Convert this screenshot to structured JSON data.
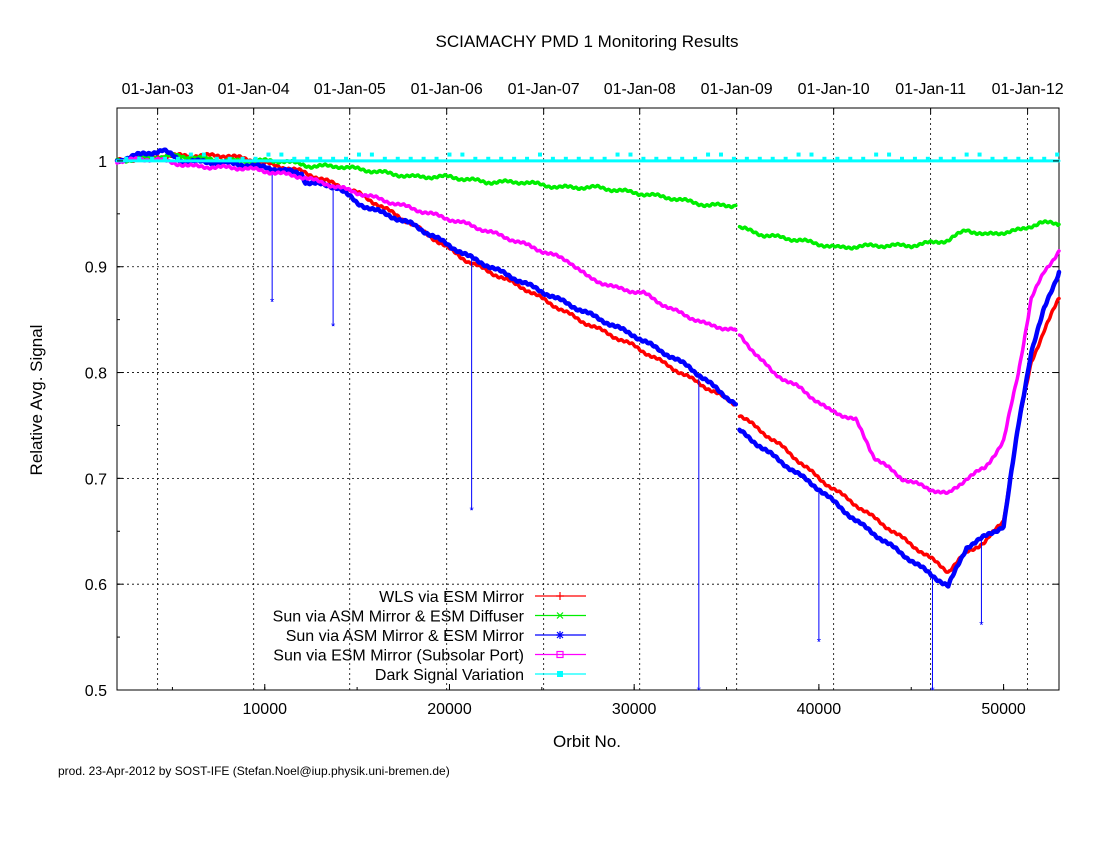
{
  "footer": "prod. 23-Apr-2012 by SOST-IFE (Stefan.Noel@iup.physik.uni-bremen.de)",
  "chart_data": {
    "type": "line",
    "title": "SCIAMACHY PMD 1 Monitoring Results",
    "xlabel": "Orbit No.",
    "ylabel": "Relative Avg. Signal",
    "xlim": [
      2000,
      53000
    ],
    "ylim": [
      0.5,
      1.05
    ],
    "grid": true,
    "legend_position": "bottom-left",
    "x_ticks": [
      10000,
      20000,
      30000,
      40000,
      50000
    ],
    "x_tick_labels": [
      "10000",
      "20000",
      "30000",
      "40000",
      "50000"
    ],
    "y_ticks": [
      0.5,
      0.6,
      0.7,
      0.8,
      0.9,
      1.0
    ],
    "y_tick_labels": [
      "0.5",
      "0.6",
      "0.7",
      "0.8",
      "0.9",
      "1"
    ],
    "top_axis": {
      "orbits": [
        4200,
        9400,
        14600,
        19850,
        25100,
        30300,
        35550,
        40800,
        46050,
        51300
      ],
      "labels": [
        "01-Jan-03",
        "01-Jan-04",
        "01-Jan-05",
        "01-Jan-06",
        "01-Jan-07",
        "01-Jan-08",
        "01-Jan-09",
        "01-Jan-10",
        "01-Jan-11",
        "01-Jan-12"
      ]
    },
    "series": [
      {
        "name": "WLS via ESM Mirror",
        "color": "#ff0000",
        "marker": "plus",
        "segments": [
          [
            [
              2000,
              1.0
            ],
            [
              5000,
              1.005
            ],
            [
              8000,
              1.005
            ],
            [
              9500,
              1.0
            ],
            [
              12000,
              0.99
            ],
            [
              15000,
              0.97
            ],
            [
              18000,
              0.94
            ],
            [
              21000,
              0.905
            ],
            [
              24000,
              0.88
            ],
            [
              27000,
              0.85
            ],
            [
              30000,
              0.825
            ],
            [
              33000,
              0.795
            ],
            [
              35500,
              0.77
            ]
          ],
          [
            [
              35700,
              0.76
            ],
            [
              38000,
              0.73
            ],
            [
              40000,
              0.7
            ],
            [
              42000,
              0.675
            ],
            [
              44000,
              0.65
            ],
            [
              46000,
              0.625
            ],
            [
              47000,
              0.612
            ],
            [
              48000,
              0.63
            ],
            [
              49000,
              0.64
            ],
            [
              50000,
              0.66
            ],
            [
              50800,
              0.75
            ],
            [
              51500,
              0.81
            ],
            [
              52200,
              0.84
            ],
            [
              53000,
              0.87
            ]
          ]
        ]
      },
      {
        "name": "Sun via ASM Mirror & ESM Diffuser",
        "color": "#00ee00",
        "marker": "cross",
        "segments": [
          [
            [
              2000,
              1.0
            ],
            [
              5000,
              1.005
            ],
            [
              8000,
              1.0
            ],
            [
              11000,
              1.0
            ],
            [
              12500,
              0.995
            ],
            [
              14000,
              0.995
            ],
            [
              16000,
              0.99
            ],
            [
              18000,
              0.985
            ],
            [
              20000,
              0.985
            ],
            [
              22000,
              0.98
            ],
            [
              24000,
              0.98
            ],
            [
              26000,
              0.975
            ],
            [
              28000,
              0.975
            ],
            [
              30000,
              0.97
            ],
            [
              32000,
              0.965
            ],
            [
              34000,
              0.958
            ],
            [
              35500,
              0.958
            ]
          ],
          [
            [
              35700,
              0.937
            ],
            [
              37000,
              0.93
            ],
            [
              39000,
              0.925
            ],
            [
              41000,
              0.918
            ],
            [
              43000,
              0.92
            ],
            [
              45000,
              0.92
            ],
            [
              47000,
              0.925
            ],
            [
              48000,
              0.935
            ],
            [
              49000,
              0.93
            ],
            [
              51000,
              0.935
            ],
            [
              52000,
              0.942
            ],
            [
              53000,
              0.94
            ]
          ]
        ]
      },
      {
        "name": "Sun via ASM Mirror & ESM Mirror",
        "color": "#0000ff",
        "marker": "star",
        "segments": [
          [
            [
              2000,
              1.0
            ],
            [
              3000,
              1.005
            ],
            [
              4500,
              1.01
            ],
            [
              5500,
              1.0
            ],
            [
              8000,
              0.998
            ],
            [
              10000,
              0.994
            ],
            [
              12000,
              0.988
            ],
            [
              12200,
              0.98
            ],
            [
              14000,
              0.975
            ],
            [
              15000,
              0.96
            ],
            [
              18000,
              0.94
            ],
            [
              21000,
              0.91
            ],
            [
              24000,
              0.885
            ],
            [
              27000,
              0.86
            ],
            [
              30000,
              0.835
            ],
            [
              33000,
              0.805
            ],
            [
              35500,
              0.77
            ]
          ],
          [
            [
              35700,
              0.745
            ],
            [
              38000,
              0.715
            ],
            [
              40000,
              0.69
            ],
            [
              42000,
              0.66
            ],
            [
              44000,
              0.635
            ],
            [
              46000,
              0.61
            ],
            [
              47000,
              0.598
            ],
            [
              48000,
              0.635
            ],
            [
              49000,
              0.645
            ],
            [
              50000,
              0.655
            ],
            [
              50800,
              0.75
            ],
            [
              51500,
              0.82
            ],
            [
              52200,
              0.86
            ],
            [
              53000,
              0.895
            ]
          ]
        ],
        "spikes": [
          [
            10400,
            0.867
          ],
          [
            13700,
            0.844
          ],
          [
            21200,
            0.67
          ],
          [
            33500,
            0.5
          ],
          [
            40000,
            0.546
          ],
          [
            46150,
            0.5
          ],
          [
            48800,
            0.562
          ]
        ]
      },
      {
        "name": "Sun via ESM Mirror (Subsolar Port)",
        "color": "#ff00ff",
        "marker": "square",
        "segments": [
          [
            [
              2000,
              1.0
            ],
            [
              4000,
              1.002
            ],
            [
              6000,
              0.995
            ],
            [
              9000,
              0.993
            ],
            [
              12000,
              0.985
            ],
            [
              15000,
              0.97
            ],
            [
              18000,
              0.955
            ],
            [
              21000,
              0.94
            ],
            [
              23500,
              0.925
            ],
            [
              25000,
              0.915
            ],
            [
              26500,
              0.905
            ],
            [
              27500,
              0.89
            ],
            [
              29000,
              0.88
            ],
            [
              30500,
              0.875
            ],
            [
              32000,
              0.86
            ],
            [
              34000,
              0.845
            ],
            [
              35500,
              0.84
            ]
          ],
          [
            [
              35700,
              0.835
            ],
            [
              37500,
              0.8
            ],
            [
              39000,
              0.785
            ],
            [
              40500,
              0.765
            ],
            [
              42000,
              0.755
            ],
            [
              43000,
              0.72
            ],
            [
              44500,
              0.7
            ],
            [
              46000,
              0.69
            ],
            [
              47000,
              0.685
            ],
            [
              48000,
              0.7
            ],
            [
              49000,
              0.71
            ],
            [
              50000,
              0.735
            ],
            [
              50800,
              0.8
            ],
            [
              51500,
              0.87
            ],
            [
              52200,
              0.895
            ],
            [
              53000,
              0.915
            ]
          ]
        ]
      },
      {
        "name": "Dark Signal Variation",
        "color": "#00ffff",
        "marker": "filled-square",
        "segments": [
          [
            [
              2000,
              1.0
            ],
            [
              10000,
              1.0
            ],
            [
              20000,
              1.0
            ],
            [
              30000,
              1.0
            ],
            [
              40000,
              1.0
            ],
            [
              50000,
              1.0
            ],
            [
              53000,
              1.0
            ]
          ]
        ]
      }
    ]
  }
}
